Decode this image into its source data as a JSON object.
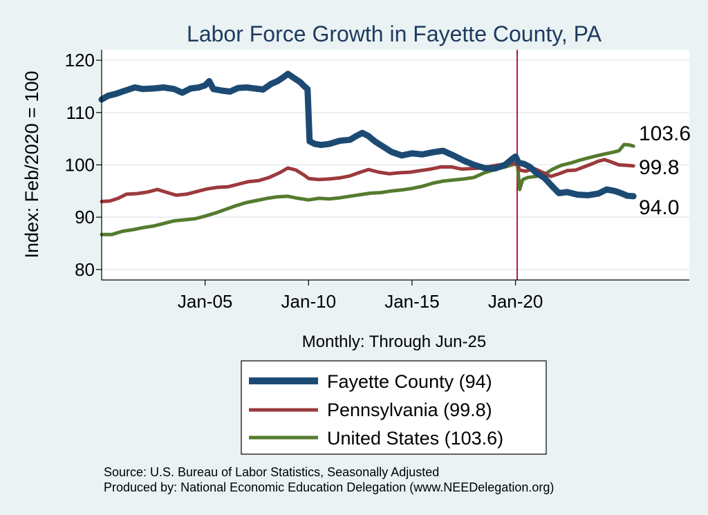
{
  "chart_data": {
    "type": "line",
    "title": "Labor Force Growth in Fayette  County, PA",
    "xlabel": "Monthly: Through Jun-25",
    "ylabel": "Index: Feb/2020 = 100",
    "ylim": [
      78,
      122
    ],
    "xlim": [
      2000.0,
      2028.4
    ],
    "y_ticks": [
      80,
      90,
      100,
      110,
      120
    ],
    "x_ticks": [
      {
        "value": 2005,
        "label": "Jan-05"
      },
      {
        "value": 2010,
        "label": "Jan-10"
      },
      {
        "value": 2015,
        "label": "Jan-15"
      },
      {
        "value": 2020,
        "label": "Jan-20"
      }
    ],
    "reference_line": {
      "x": 2020.08,
      "color": "#b5164f"
    },
    "grid": true,
    "legend_placement": "bottom-center",
    "series": [
      {
        "name": "Fayette  County (94)",
        "color": "#1c4a73",
        "end_label": "94.0",
        "points": [
          [
            2000.0,
            112.5
          ],
          [
            2000.3,
            113.2
          ],
          [
            2000.7,
            113.6
          ],
          [
            2001.0,
            114.0
          ],
          [
            2001.3,
            114.4
          ],
          [
            2001.6,
            114.8
          ],
          [
            2002.0,
            114.5
          ],
          [
            2002.5,
            114.6
          ],
          [
            2003.0,
            114.8
          ],
          [
            2003.5,
            114.5
          ],
          [
            2003.9,
            113.8
          ],
          [
            2004.3,
            114.6
          ],
          [
            2004.7,
            114.8
          ],
          [
            2005.0,
            115.2
          ],
          [
            2005.2,
            116.0
          ],
          [
            2005.4,
            114.5
          ],
          [
            2005.8,
            114.2
          ],
          [
            2006.2,
            114.0
          ],
          [
            2006.6,
            114.7
          ],
          [
            2007.0,
            114.8
          ],
          [
            2007.4,
            114.6
          ],
          [
            2007.8,
            114.4
          ],
          [
            2008.2,
            115.5
          ],
          [
            2008.5,
            116.0
          ],
          [
            2008.8,
            116.8
          ],
          [
            2009.0,
            117.4
          ],
          [
            2009.3,
            116.6
          ],
          [
            2009.6,
            115.8
          ],
          [
            2009.8,
            115.0
          ],
          [
            2009.95,
            114.5
          ],
          [
            2010.05,
            104.5
          ],
          [
            2010.3,
            104.0
          ],
          [
            2010.6,
            103.8
          ],
          [
            2011.0,
            104.0
          ],
          [
            2011.5,
            104.6
          ],
          [
            2012.0,
            104.8
          ],
          [
            2012.3,
            105.5
          ],
          [
            2012.6,
            106.1
          ],
          [
            2012.9,
            105.5
          ],
          [
            2013.2,
            104.5
          ],
          [
            2013.6,
            103.5
          ],
          [
            2014.0,
            102.5
          ],
          [
            2014.5,
            101.8
          ],
          [
            2015.0,
            102.2
          ],
          [
            2015.5,
            102.0
          ],
          [
            2016.0,
            102.4
          ],
          [
            2016.5,
            102.7
          ],
          [
            2017.0,
            101.8
          ],
          [
            2017.5,
            100.8
          ],
          [
            2018.0,
            100.0
          ],
          [
            2018.5,
            99.4
          ],
          [
            2019.0,
            99.3
          ],
          [
            2019.5,
            100.0
          ],
          [
            2019.8,
            101.0
          ],
          [
            2020.0,
            101.6
          ],
          [
            2020.15,
            100.4
          ],
          [
            2020.4,
            100.2
          ],
          [
            2020.7,
            99.6
          ],
          [
            2021.0,
            98.5
          ],
          [
            2021.4,
            97.5
          ],
          [
            2021.8,
            95.8
          ],
          [
            2022.1,
            94.6
          ],
          [
            2022.5,
            94.8
          ],
          [
            2023.0,
            94.3
          ],
          [
            2023.5,
            94.2
          ],
          [
            2024.0,
            94.5
          ],
          [
            2024.4,
            95.3
          ],
          [
            2024.8,
            95.0
          ],
          [
            2025.1,
            94.6
          ],
          [
            2025.4,
            94.1
          ],
          [
            2025.7,
            94.0
          ]
        ]
      },
      {
        "name": "Pennsylvania (99.8)",
        "color": "#9c3a3c",
        "end_label": "99.8",
        "points": [
          [
            2000.0,
            93.0
          ],
          [
            2000.4,
            93.1
          ],
          [
            2000.8,
            93.6
          ],
          [
            2001.2,
            94.4
          ],
          [
            2001.7,
            94.5
          ],
          [
            2002.2,
            94.8
          ],
          [
            2002.7,
            95.3
          ],
          [
            2003.1,
            94.8
          ],
          [
            2003.6,
            94.2
          ],
          [
            2004.1,
            94.4
          ],
          [
            2004.6,
            94.9
          ],
          [
            2005.1,
            95.4
          ],
          [
            2005.6,
            95.7
          ],
          [
            2006.1,
            95.8
          ],
          [
            2006.6,
            96.3
          ],
          [
            2007.1,
            96.8
          ],
          [
            2007.6,
            97.0
          ],
          [
            2008.1,
            97.6
          ],
          [
            2008.6,
            98.5
          ],
          [
            2009.0,
            99.4
          ],
          [
            2009.4,
            99.0
          ],
          [
            2009.8,
            98.0
          ],
          [
            2010.0,
            97.4
          ],
          [
            2010.5,
            97.2
          ],
          [
            2011.0,
            97.3
          ],
          [
            2011.5,
            97.5
          ],
          [
            2012.0,
            97.9
          ],
          [
            2012.5,
            98.6
          ],
          [
            2012.9,
            99.1
          ],
          [
            2013.4,
            98.6
          ],
          [
            2013.9,
            98.3
          ],
          [
            2014.4,
            98.5
          ],
          [
            2014.9,
            98.6
          ],
          [
            2015.4,
            98.9
          ],
          [
            2015.9,
            99.2
          ],
          [
            2016.4,
            99.6
          ],
          [
            2016.9,
            99.6
          ],
          [
            2017.4,
            99.2
          ],
          [
            2017.9,
            99.3
          ],
          [
            2018.4,
            99.4
          ],
          [
            2018.9,
            99.8
          ],
          [
            2019.4,
            100.1
          ],
          [
            2019.9,
            100.3
          ],
          [
            2020.1,
            100.0
          ],
          [
            2020.2,
            99.0
          ],
          [
            2020.5,
            98.8
          ],
          [
            2020.9,
            99.3
          ],
          [
            2021.3,
            98.6
          ],
          [
            2021.7,
            97.8
          ],
          [
            2022.1,
            98.3
          ],
          [
            2022.5,
            98.9
          ],
          [
            2022.9,
            99.0
          ],
          [
            2023.3,
            99.6
          ],
          [
            2023.7,
            100.2
          ],
          [
            2024.0,
            100.7
          ],
          [
            2024.3,
            101.0
          ],
          [
            2024.6,
            100.6
          ],
          [
            2025.0,
            100.0
          ],
          [
            2025.4,
            99.9
          ],
          [
            2025.7,
            99.8
          ]
        ]
      },
      {
        "name": "United States (103.6)",
        "color": "#557b2e",
        "end_label": "103.6",
        "points": [
          [
            2000.0,
            86.7
          ],
          [
            2000.5,
            86.7
          ],
          [
            2001.0,
            87.3
          ],
          [
            2001.5,
            87.6
          ],
          [
            2002.0,
            88.0
          ],
          [
            2002.5,
            88.3
          ],
          [
            2003.0,
            88.8
          ],
          [
            2003.5,
            89.3
          ],
          [
            2004.0,
            89.5
          ],
          [
            2004.5,
            89.7
          ],
          [
            2005.0,
            90.2
          ],
          [
            2005.5,
            90.8
          ],
          [
            2006.0,
            91.5
          ],
          [
            2006.5,
            92.2
          ],
          [
            2007.0,
            92.8
          ],
          [
            2007.5,
            93.2
          ],
          [
            2008.0,
            93.6
          ],
          [
            2008.5,
            93.9
          ],
          [
            2009.0,
            94.0
          ],
          [
            2009.5,
            93.6
          ],
          [
            2010.0,
            93.3
          ],
          [
            2010.5,
            93.6
          ],
          [
            2011.0,
            93.5
          ],
          [
            2011.5,
            93.7
          ],
          [
            2012.0,
            94.0
          ],
          [
            2012.5,
            94.3
          ],
          [
            2013.0,
            94.6
          ],
          [
            2013.5,
            94.7
          ],
          [
            2014.0,
            95.0
          ],
          [
            2014.5,
            95.2
          ],
          [
            2015.0,
            95.5
          ],
          [
            2015.5,
            95.9
          ],
          [
            2016.0,
            96.5
          ],
          [
            2016.5,
            96.9
          ],
          [
            2017.0,
            97.1
          ],
          [
            2017.5,
            97.3
          ],
          [
            2018.0,
            97.6
          ],
          [
            2018.5,
            98.5
          ],
          [
            2019.0,
            99.1
          ],
          [
            2019.5,
            99.6
          ],
          [
            2020.0,
            100.2
          ],
          [
            2020.1,
            99.8
          ],
          [
            2020.2,
            95.3
          ],
          [
            2020.35,
            97.2
          ],
          [
            2020.6,
            97.6
          ],
          [
            2021.0,
            97.8
          ],
          [
            2021.4,
            98.2
          ],
          [
            2021.8,
            99.2
          ],
          [
            2022.2,
            99.9
          ],
          [
            2022.7,
            100.4
          ],
          [
            2023.2,
            101.0
          ],
          [
            2023.7,
            101.5
          ],
          [
            2024.2,
            102.0
          ],
          [
            2024.7,
            102.4
          ],
          [
            2025.0,
            102.7
          ],
          [
            2025.25,
            103.9
          ],
          [
            2025.5,
            103.8
          ],
          [
            2025.7,
            103.6
          ]
        ]
      }
    ]
  },
  "notes": {
    "source": "Source: U.S. Bureau of Labor Statistics, Seasonally Adjusted",
    "produced_by": "Produced by: National Economic Education Delegation (www.NEEDelegation.org)"
  }
}
